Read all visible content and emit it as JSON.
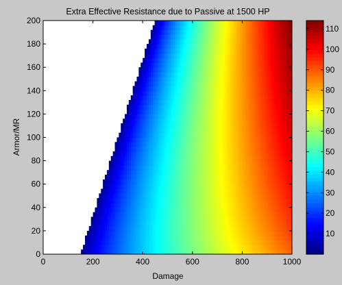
{
  "chart_data": {
    "type": "heatmap",
    "title": "Extra Effective Resistance due to Passive at 1500 HP",
    "xlabel": "Damage",
    "ylabel": "Armor/MR",
    "xlim": [
      0,
      1000
    ],
    "ylim": [
      0,
      200
    ],
    "x_ticks": [
      0,
      200,
      400,
      600,
      800,
      1000
    ],
    "y_ticks": [
      0,
      20,
      40,
      60,
      80,
      100,
      120,
      140,
      160,
      180,
      200
    ],
    "colorbar": {
      "colormap": "jet",
      "range": [
        0,
        114
      ],
      "ticks": [
        10,
        20,
        30,
        40,
        50,
        60,
        70,
        80,
        90,
        100,
        110
      ]
    },
    "no_data_region": "Damage below 150 + 1.5 × Armor/MR (white)",
    "sample_values": [
      {
        "damage": 200,
        "armor_mr": 0,
        "value": 5
      },
      {
        "damage": 400,
        "armor_mr": 100,
        "value": 2
      },
      {
        "damage": 500,
        "armor_mr": 0,
        "value": 30
      },
      {
        "damage": 600,
        "armor_mr": 100,
        "value": 50
      },
      {
        "damage": 700,
        "armor_mr": 0,
        "value": 70
      },
      {
        "damage": 700,
        "armor_mr": 100,
        "value": 74
      },
      {
        "damage": 1000,
        "armor_mr": 0,
        "value": 88
      },
      {
        "damage": 1000,
        "armor_mr": 100,
        "value": 104
      },
      {
        "damage": 1000,
        "armor_mr": 200,
        "value": 114
      }
    ]
  }
}
